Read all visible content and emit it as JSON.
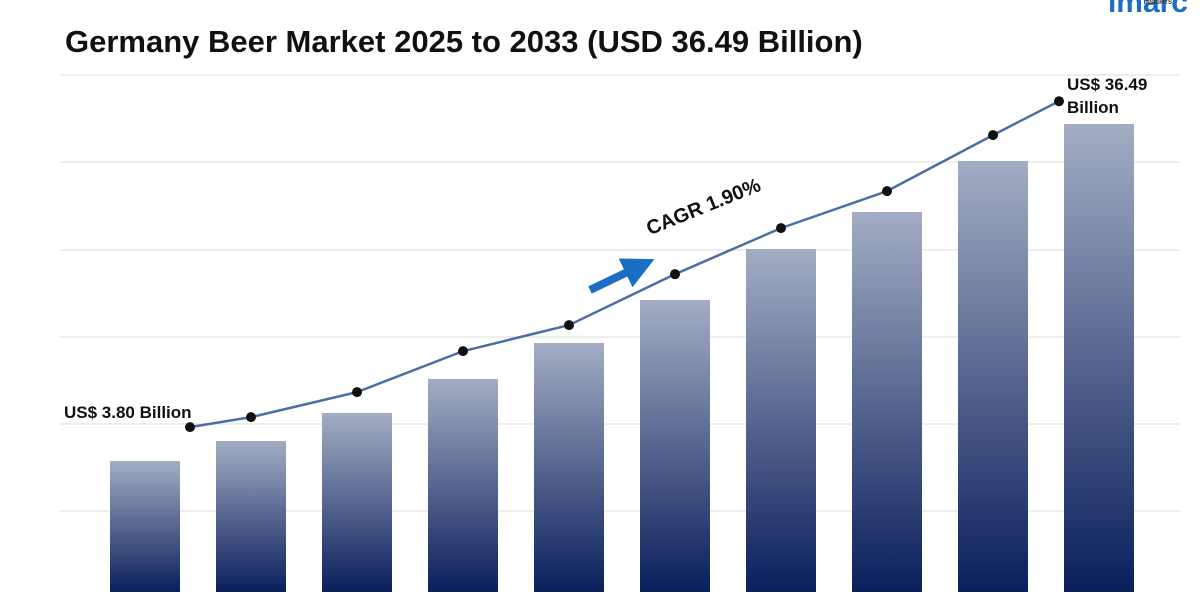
{
  "logo": {
    "name": "imarc",
    "tagline": "INSIGHTS"
  },
  "chart_data": {
    "type": "bar",
    "title": "Germany Beer Market 2025 to 2033 (USD 36.49 Billion)",
    "annotations": [
      "CAGR 1.90%"
    ],
    "categories": [
      null,
      null,
      null,
      null,
      null,
      null,
      null,
      null,
      null,
      null
    ],
    "series": [
      {
        "type": "bar",
        "axis": "y2",
        "color": "#0a1f5c",
        "values": [
          13.1,
          15.1,
          17.9,
          21.3,
          24.9,
          29.2,
          34.3,
          38.0,
          43.1,
          46.8
        ]
      },
      {
        "type": "line",
        "color": "#4a6fa5",
        "values": [
          3.8,
          4.8,
          7.31,
          11.42,
          14.03,
          19.14,
          23.76,
          27.47,
          33.09,
          36.49
        ],
        "value_labels": [
          "US$ 3.80 Billion",
          null,
          null,
          null,
          null,
          null,
          null,
          null,
          null,
          "US$ 36.49 Billion"
        ]
      }
    ],
    "ylim": [
      0,
      50
    ],
    "y2lim": [
      0,
      50
    ]
  }
}
